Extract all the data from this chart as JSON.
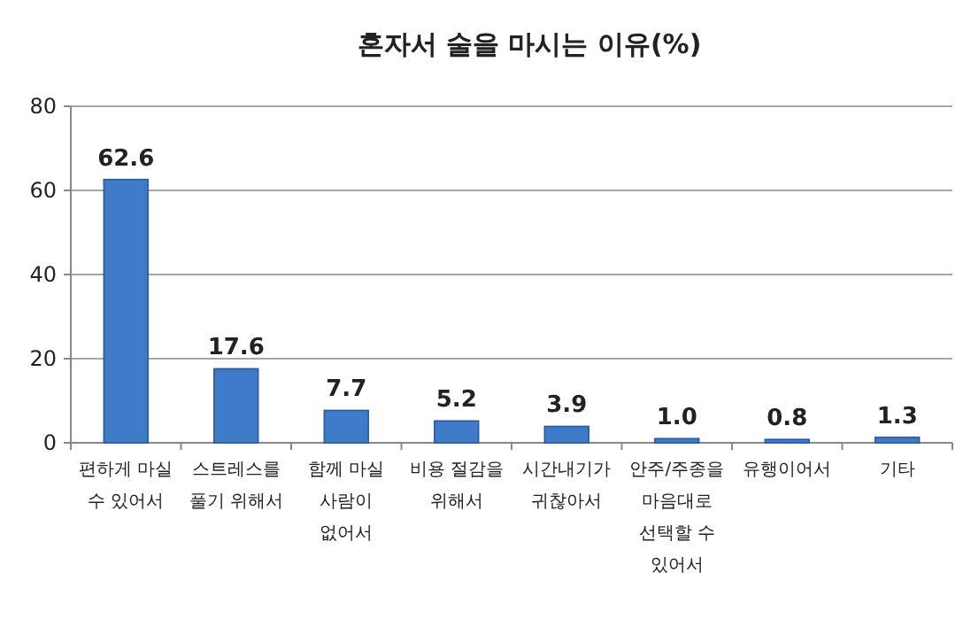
{
  "chart_data": {
    "type": "bar",
    "title": "혼자서 술을 마시는 이유(%)",
    "categories": [
      "편하게 마실 수 있어서",
      "스트레스를 풀기 위해서",
      "함께 마실 사람이 없어서",
      "비용 절감을 위해서",
      "시간내기가 귀찮아서",
      "안주/주종을 마음대로 선택할 수 있어서",
      "유행이어서",
      "기타"
    ],
    "values": [
      62.6,
      17.6,
      7.7,
      5.2,
      3.9,
      1.0,
      0.8,
      1.3
    ],
    "color": "#3f7bc8",
    "ylim": [
      0,
      80
    ],
    "yticks": [
      0,
      20,
      40,
      60,
      80
    ],
    "grid": "y",
    "value_labels": [
      "62.6",
      "17.6",
      "7.7",
      "5.2",
      "3.9",
      "1.0",
      "0.8",
      "1.3"
    ]
  }
}
